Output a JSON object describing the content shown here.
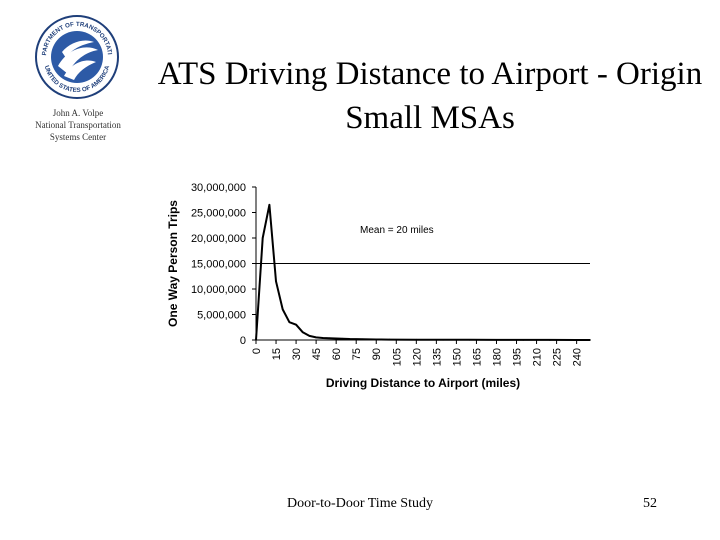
{
  "slide": {
    "title_line1": "ATS Driving Distance to Airport - Origin",
    "title_line2": "Small MSAs",
    "org_line1": "John A. Volpe",
    "org_line2": "National Transportation",
    "org_line3": "Systems Center",
    "footer_text": "Door-to-Door Time Study",
    "page_number": "52"
  },
  "logo": {
    "icon": "us-dot-seal-icon",
    "top_text": "DEPARTMENT OF TRANSPORTATION",
    "bottom_text": "UNITED STATES OF AMERICA"
  },
  "chart_data": {
    "type": "line",
    "title": "",
    "xlabel": "Driving Distance to Airport (miles)",
    "ylabel": "One Way Person Trips",
    "annotation": "Mean = 20 miles",
    "ylim": [
      0,
      30000000
    ],
    "xlim": [
      0,
      250
    ],
    "y_ticks": [
      "0",
      "5,000,000",
      "10,000,000",
      "15,000,000",
      "20,000,000",
      "25,000,000",
      "30,000,000"
    ],
    "y_tick_values": [
      0,
      5000000,
      10000000,
      15000000,
      20000000,
      25000000,
      30000000
    ],
    "x_ticks": [
      "0",
      "15",
      "30",
      "45",
      "60",
      "75",
      "90",
      "105",
      "120",
      "135",
      "150",
      "165",
      "180",
      "195",
      "210",
      "225",
      "240"
    ],
    "x_tick_values": [
      0,
      15,
      30,
      45,
      60,
      75,
      90,
      105,
      120,
      135,
      150,
      165,
      180,
      195,
      210,
      225,
      240
    ],
    "reference_line": 15000000,
    "series": [
      {
        "x": [
          0,
          5,
          10,
          15,
          20,
          25,
          30,
          35,
          40,
          45,
          50,
          55,
          60,
          65,
          70,
          80,
          90,
          100,
          120,
          140,
          160,
          180,
          200,
          220,
          240,
          250
        ],
        "values": [
          0,
          20000000,
          26500000,
          11500000,
          6000000,
          3500000,
          3000000,
          1500000,
          800000,
          500000,
          400000,
          350000,
          300000,
          250000,
          200000,
          150000,
          100000,
          80000,
          60000,
          40000,
          30000,
          20000,
          15000,
          10000,
          8000,
          5000
        ]
      }
    ],
    "grid": false,
    "colors": {
      "line": "#000000"
    }
  }
}
